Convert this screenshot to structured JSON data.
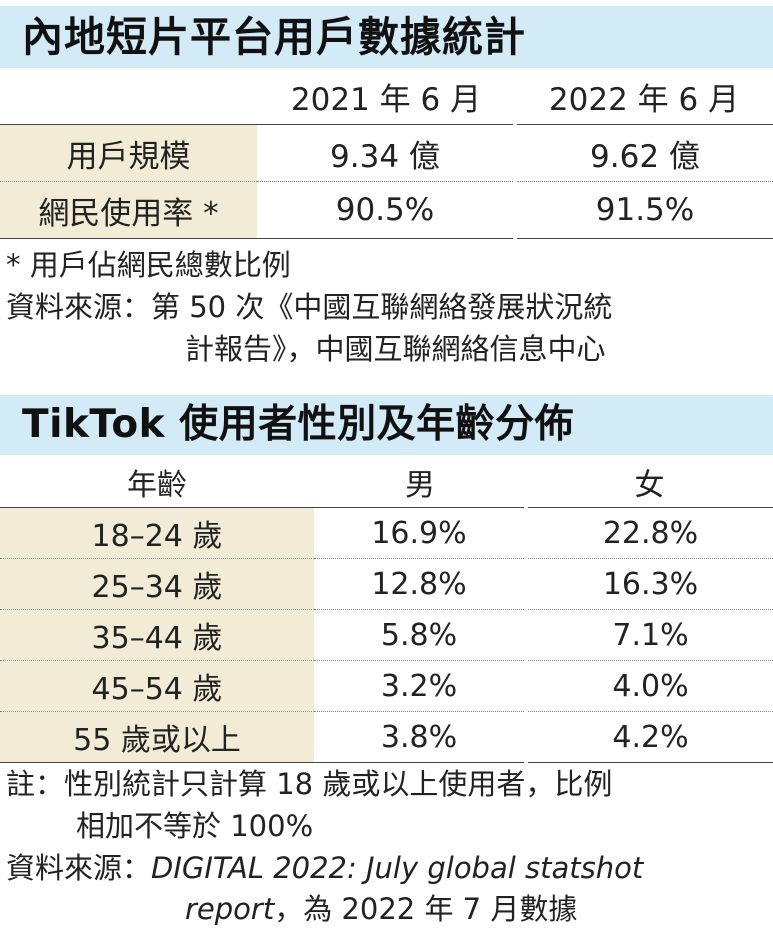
{
  "section1": {
    "title": "內地短片平台用戶數據統計",
    "columns": [
      "",
      "2021 年 6 月",
      "2022 年 6 月"
    ],
    "rows": [
      {
        "label": "用戶規模",
        "v2021": "9.34 億",
        "v2022": "9.62 億"
      },
      {
        "label": "網民使用率 *",
        "v2021": "90.5%",
        "v2022": "91.5%"
      }
    ],
    "footnote": "* 用戶佔網民總數比例",
    "source_label": "資料來源：",
    "source_line1": "第 50 次《中國互聯網絡發展狀況統",
    "source_line2": "計報告》，中國互聯網絡信息中心"
  },
  "section2": {
    "title": "TikTok 使用者性別及年齡分佈",
    "columns": [
      "年齡",
      "男",
      "女"
    ],
    "rows": [
      {
        "age": "18–24 歲",
        "male": "16.9%",
        "female": "22.8%"
      },
      {
        "age": "25–34 歲",
        "male": "12.8%",
        "female": "16.3%"
      },
      {
        "age": "35–44 歲",
        "male": "5.8%",
        "female": "7.1%"
      },
      {
        "age": "45–54 歲",
        "male": "3.2%",
        "female": "4.0%"
      },
      {
        "age": "55 歲或以上",
        "male": "3.8%",
        "female": "4.2%"
      }
    ],
    "note_label": "註：",
    "note_line1": "性別統計只計算 18 歲或以上使用者，比例",
    "note_line2": "相加不等於 100%",
    "source_label": "資料來源：",
    "source_line1_en": "DIGITAL 2022: July global statshot",
    "source_line2_en": "report",
    "source_line2_zh": "，為 2022 年 7 月數據"
  }
}
